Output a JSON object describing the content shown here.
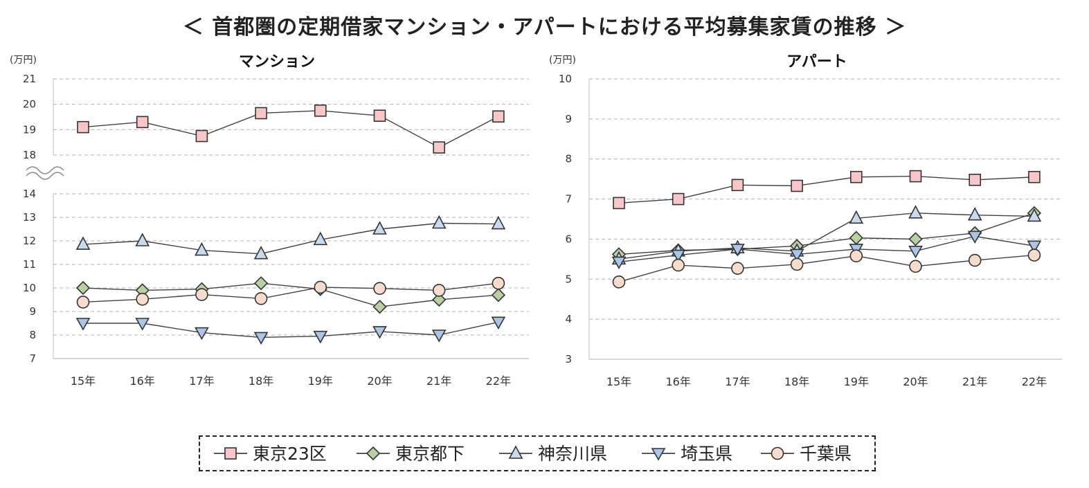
{
  "title": "＜ 首都圏の定期借家マンション・アパートにおける平均募集家賃の推移 ＞",
  "legend": [
    "東京23区",
    "東京都下",
    "神奈川県",
    "埼玉県",
    "千葉県"
  ],
  "series_styles": [
    {
      "name": "東京23区",
      "marker": "square",
      "fill": "#f8c6c6"
    },
    {
      "name": "東京都下",
      "marker": "diamond",
      "fill": "#b7d1a1"
    },
    {
      "name": "神奈川県",
      "marker": "triangle-up",
      "fill": "#c6dbf0"
    },
    {
      "name": "埼玉県",
      "marker": "triangle-down",
      "fill": "#a9c6e8"
    },
    {
      "name": "千葉県",
      "marker": "circle",
      "fill": "#f8dccb"
    }
  ],
  "colors": {
    "line": "#404040",
    "stroke": "#333333",
    "grid": "#b0b0b0",
    "axis": "#bfbfbf"
  },
  "chart_data": [
    {
      "id": "mansion",
      "type": "line",
      "title": "マンション",
      "ylabel": "(万円)",
      "categories": [
        "15年",
        "16年",
        "17年",
        "18年",
        "19年",
        "20年",
        "21年",
        "22年"
      ],
      "broken_axis": true,
      "upper_ylim": [
        18,
        21
      ],
      "lower_ylim": [
        7,
        14
      ],
      "series": [
        {
          "name": "東京23区",
          "values": [
            19.1,
            19.3,
            18.75,
            19.65,
            19.75,
            19.55,
            18.3,
            19.52
          ]
        },
        {
          "name": "東京都下",
          "values": [
            10.0,
            9.9,
            9.95,
            10.2,
            9.95,
            9.2,
            9.5,
            9.7
          ]
        },
        {
          "name": "神奈川県",
          "values": [
            11.85,
            12.0,
            11.6,
            11.45,
            12.05,
            12.5,
            12.75,
            12.72
          ]
        },
        {
          "name": "埼玉県",
          "values": [
            8.5,
            8.5,
            8.1,
            7.9,
            7.95,
            8.15,
            8.0,
            8.55
          ]
        },
        {
          "name": "千葉県",
          "values": [
            9.4,
            9.52,
            9.72,
            9.55,
            10.03,
            9.98,
            9.9,
            10.2
          ]
        }
      ]
    },
    {
      "id": "apartment",
      "type": "line",
      "title": "アパート",
      "ylabel": "(万円)",
      "categories": [
        "15年",
        "16年",
        "17年",
        "18年",
        "19年",
        "20年",
        "21年",
        "22年"
      ],
      "broken_axis": false,
      "ylim": [
        3,
        10
      ],
      "series": [
        {
          "name": "東京23区",
          "values": [
            6.9,
            7.0,
            7.35,
            7.33,
            7.55,
            7.57,
            7.48,
            7.55
          ]
        },
        {
          "name": "東京都下",
          "values": [
            5.62,
            5.72,
            5.75,
            5.83,
            6.03,
            6.0,
            6.15,
            6.65
          ]
        },
        {
          "name": "神奈川県",
          "values": [
            5.5,
            5.7,
            5.78,
            5.7,
            6.52,
            6.65,
            6.6,
            6.57
          ]
        },
        {
          "name": "埼玉県",
          "values": [
            5.43,
            5.6,
            5.75,
            5.62,
            5.75,
            5.7,
            6.07,
            5.83
          ]
        },
        {
          "name": "千葉県",
          "values": [
            4.93,
            5.35,
            5.27,
            5.37,
            5.58,
            5.32,
            5.47,
            5.6
          ]
        }
      ]
    }
  ]
}
